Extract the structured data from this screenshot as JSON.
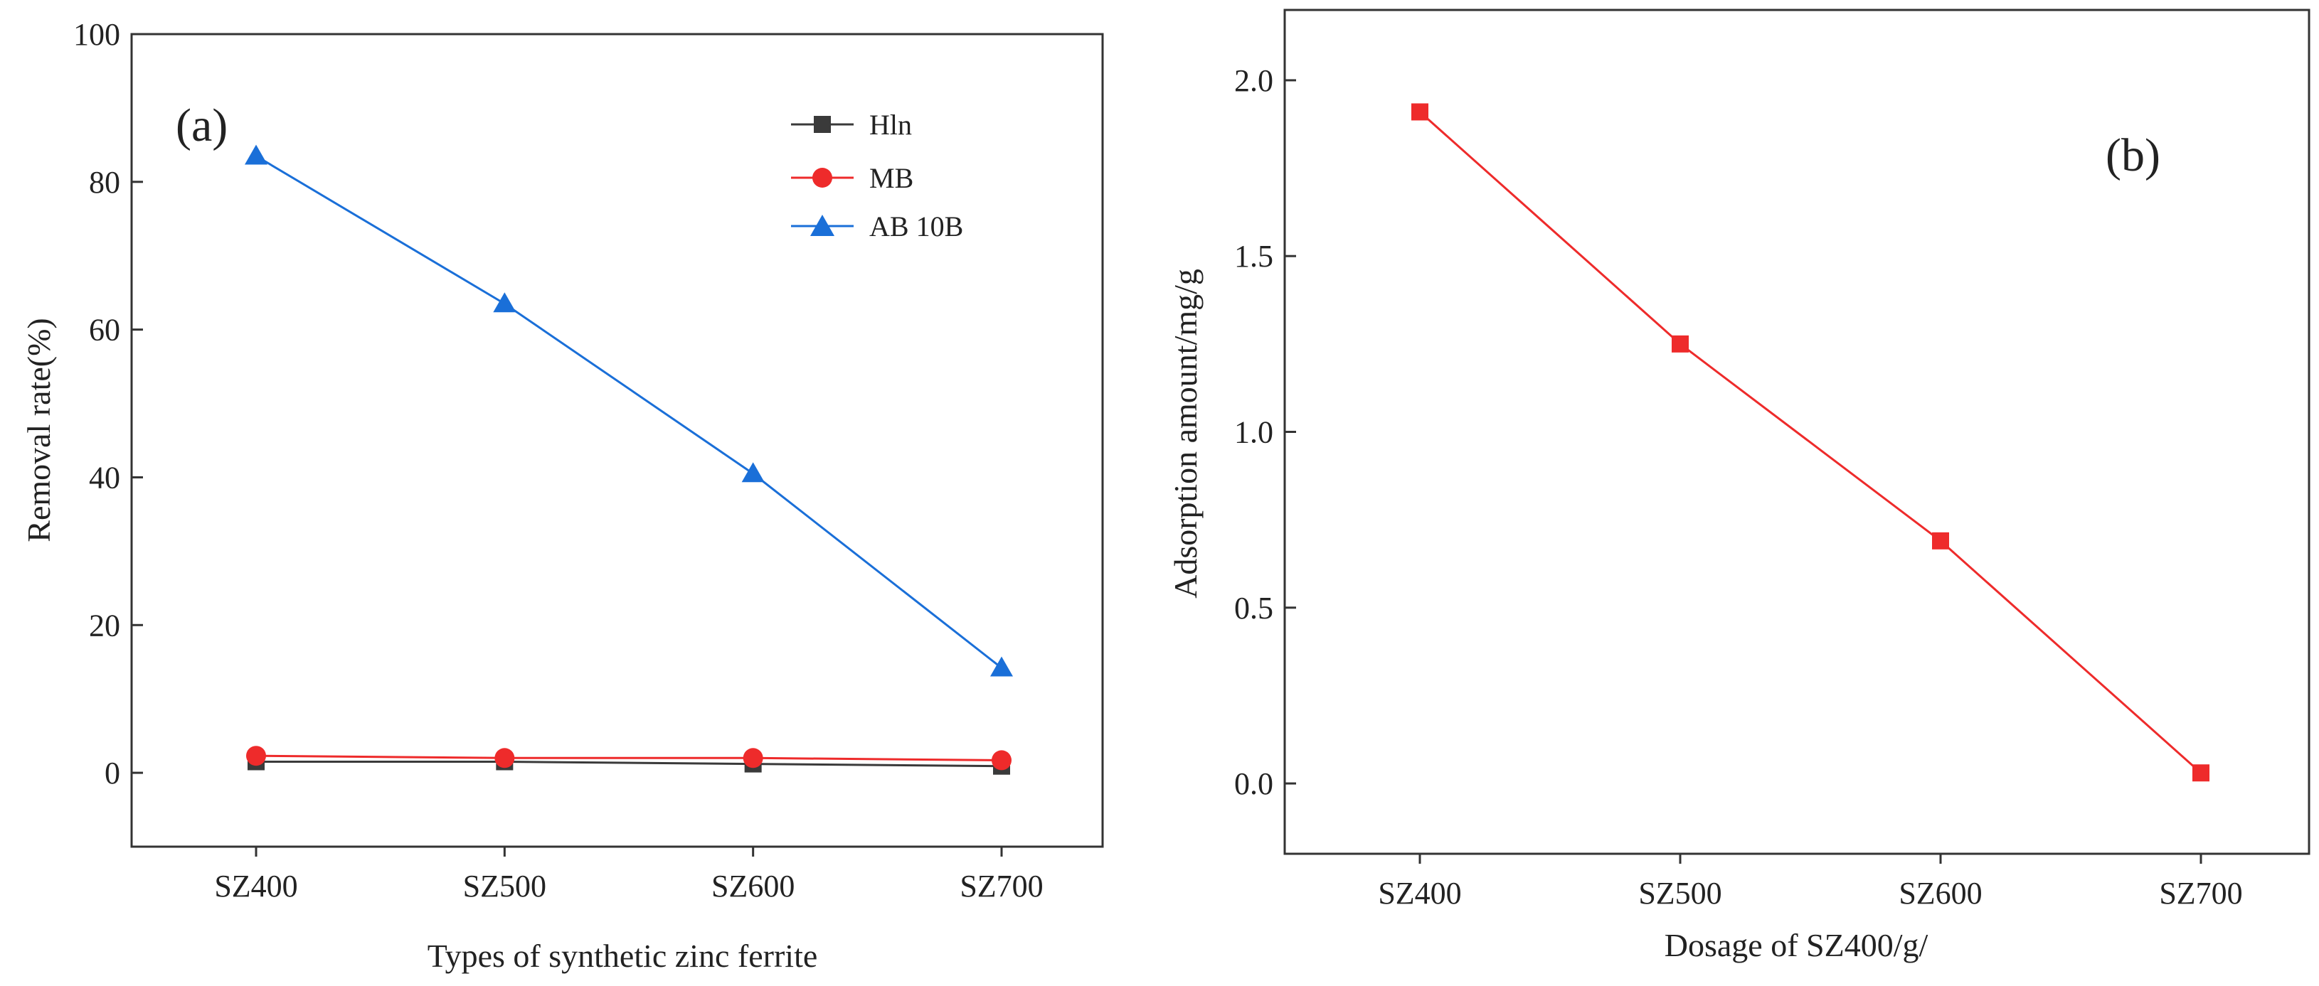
{
  "chart_data": [
    {
      "type": "line",
      "panel_label": "(a)",
      "xlabel": "Types of synthetic zinc ferrite",
      "ylabel": "Removal rate(%)",
      "categories": [
        "SZ400",
        "SZ500",
        "SZ600",
        "SZ700"
      ],
      "ylim": [
        -10,
        100
      ],
      "yticks": [
        "0",
        "20",
        "40",
        "60",
        "80",
        "100"
      ],
      "legend_position": "top-right",
      "series": [
        {
          "name": "Hln",
          "color": "#3a3a3a",
          "marker": "square",
          "values": [
            1.5,
            1.5,
            1.2,
            0.9
          ]
        },
        {
          "name": "MB",
          "color": "#ee2b2b",
          "marker": "circle",
          "values": [
            2.3,
            2.0,
            2.0,
            1.7
          ]
        },
        {
          "name": "AB 10B",
          "color": "#1a6fd8",
          "marker": "triangle",
          "values": [
            83.5,
            63.5,
            40.5,
            14.2
          ]
        }
      ]
    },
    {
      "type": "line",
      "panel_label": "(b)",
      "xlabel": "Dosage of SZ400/g/",
      "ylabel": "Adsorption amount/mg/g",
      "categories": [
        "SZ400",
        "SZ500",
        "SZ600",
        "SZ700"
      ],
      "ylim": [
        -0.2,
        2.2
      ],
      "yticks": [
        "0.0",
        "0.5",
        "1.0",
        "1.5",
        "2.0"
      ],
      "series": [
        {
          "name": "Adsorption amount",
          "color": "#ee2b2b",
          "marker": "square",
          "values": [
            1.91,
            1.25,
            0.69,
            0.03
          ]
        }
      ]
    }
  ]
}
